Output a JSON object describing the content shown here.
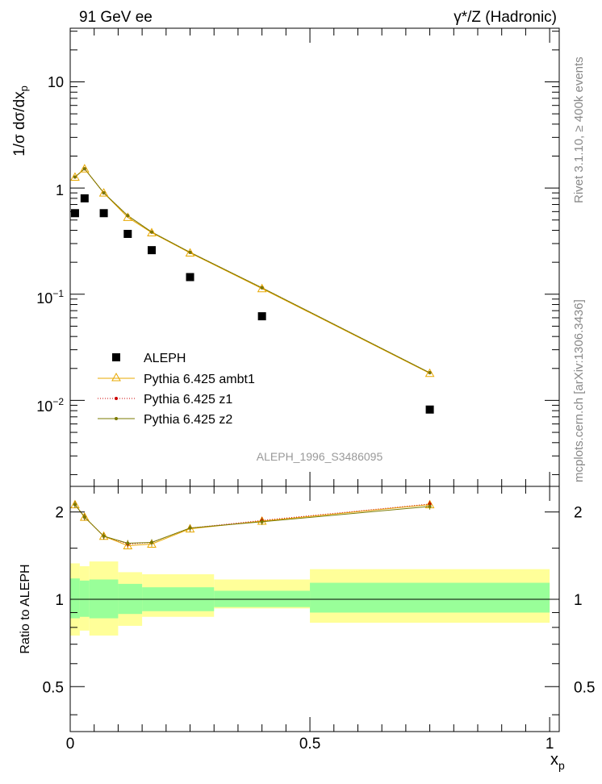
{
  "header": {
    "left_title": "91 GeV ee",
    "right_title": "γ*/Z (Hadronic)"
  },
  "side_labels": {
    "rivet": "Rivet 3.1.10, ≥ 400k events",
    "mcplots": "mcplots.cern.ch [arXiv:1306.3436]"
  },
  "analysis_id": "ALEPH_1996_S3486095",
  "colors": {
    "data": "#000000",
    "ambt1": "#e8a800",
    "z1": "#cc0000",
    "z2": "#7a7a00",
    "band_outer": "#ffff99",
    "band_inner": "#99ff99"
  },
  "legend": {
    "aleph": "ALEPH",
    "ambt1": "Pythia 6.425 ambt1",
    "z1": "Pythia 6.425 z1",
    "z2": "Pythia 6.425 z2"
  },
  "chart_data": [
    {
      "type": "scatter",
      "panel": "main",
      "ylabel": "1/σ dσ/dx_p",
      "yscale": "log",
      "ylim": [
        0.00155,
        32
      ],
      "xlim": [
        0,
        1.02
      ],
      "ytick_labels": [
        "10⁻²",
        "10⁻¹",
        "1",
        "10"
      ],
      "x": [
        0.01,
        0.03,
        0.07,
        0.12,
        0.17,
        0.25,
        0.4,
        0.75
      ],
      "series": [
        {
          "name": "ALEPH",
          "marker": "square",
          "values": [
            0.58,
            0.8,
            0.58,
            0.37,
            0.26,
            0.145,
            0.062,
            0.0082
          ]
        },
        {
          "name": "Pythia 6.425 ambt1",
          "marker": "triangle",
          "values": [
            1.27,
            1.52,
            0.9,
            0.53,
            0.38,
            0.245,
            0.113,
            0.018
          ]
        },
        {
          "name": "Pythia 6.425 z1",
          "marker": "dot",
          "values": [
            1.27,
            1.52,
            0.9,
            0.55,
            0.385,
            0.248,
            0.115,
            0.0182
          ]
        },
        {
          "name": "Pythia 6.425 z2",
          "marker": "dot",
          "values": [
            1.27,
            1.52,
            0.9,
            0.55,
            0.385,
            0.248,
            0.115,
            0.0182
          ]
        }
      ]
    },
    {
      "type": "line",
      "panel": "ratio",
      "ylabel": "Ratio to ALEPH",
      "xlabel": "x_p",
      "yscale": "log",
      "ylim": [
        0.35,
        2.45
      ],
      "xlim": [
        0,
        1.02
      ],
      "yticks": [
        0.5,
        1,
        2
      ],
      "ytick_labels": [
        "0.5",
        "1",
        "2"
      ],
      "xticks": [
        0,
        0.5,
        1
      ],
      "xtick_labels": [
        "0",
        "0.5",
        "1"
      ],
      "x": [
        0.01,
        0.03,
        0.07,
        0.12,
        0.17,
        0.25,
        0.4,
        0.75
      ],
      "series": [
        {
          "name": "Pythia 6.425 ambt1",
          "values": [
            2.12,
            1.92,
            1.65,
            1.53,
            1.55,
            1.75,
            1.86,
            2.12
          ]
        },
        {
          "name": "Pythia 6.425 z1",
          "values": [
            2.12,
            1.92,
            1.65,
            1.55,
            1.57,
            1.76,
            1.87,
            2.13
          ]
        },
        {
          "name": "Pythia 6.425 z2",
          "values": [
            2.12,
            1.92,
            1.65,
            1.56,
            1.57,
            1.76,
            1.85,
            2.09
          ]
        }
      ],
      "bands": [
        {
          "x0": 0.0,
          "x1": 0.02,
          "outer": [
            0.75,
            1.33
          ],
          "inner": [
            0.86,
            1.18
          ]
        },
        {
          "x0": 0.02,
          "x1": 0.04,
          "outer": [
            0.78,
            1.3
          ],
          "inner": [
            0.87,
            1.16
          ]
        },
        {
          "x0": 0.04,
          "x1": 0.1,
          "outer": [
            0.75,
            1.35
          ],
          "inner": [
            0.86,
            1.17
          ]
        },
        {
          "x0": 0.1,
          "x1": 0.15,
          "outer": [
            0.81,
            1.24
          ],
          "inner": [
            0.89,
            1.13
          ]
        },
        {
          "x0": 0.15,
          "x1": 0.3,
          "outer": [
            0.87,
            1.22
          ],
          "inner": [
            0.91,
            1.1
          ]
        },
        {
          "x0": 0.3,
          "x1": 0.5,
          "outer": [
            0.93,
            1.17
          ],
          "inner": [
            0.94,
            1.07
          ]
        },
        {
          "x0": 0.5,
          "x1": 1.0,
          "outer": [
            0.83,
            1.27
          ],
          "inner": [
            0.9,
            1.14
          ]
        }
      ]
    }
  ]
}
